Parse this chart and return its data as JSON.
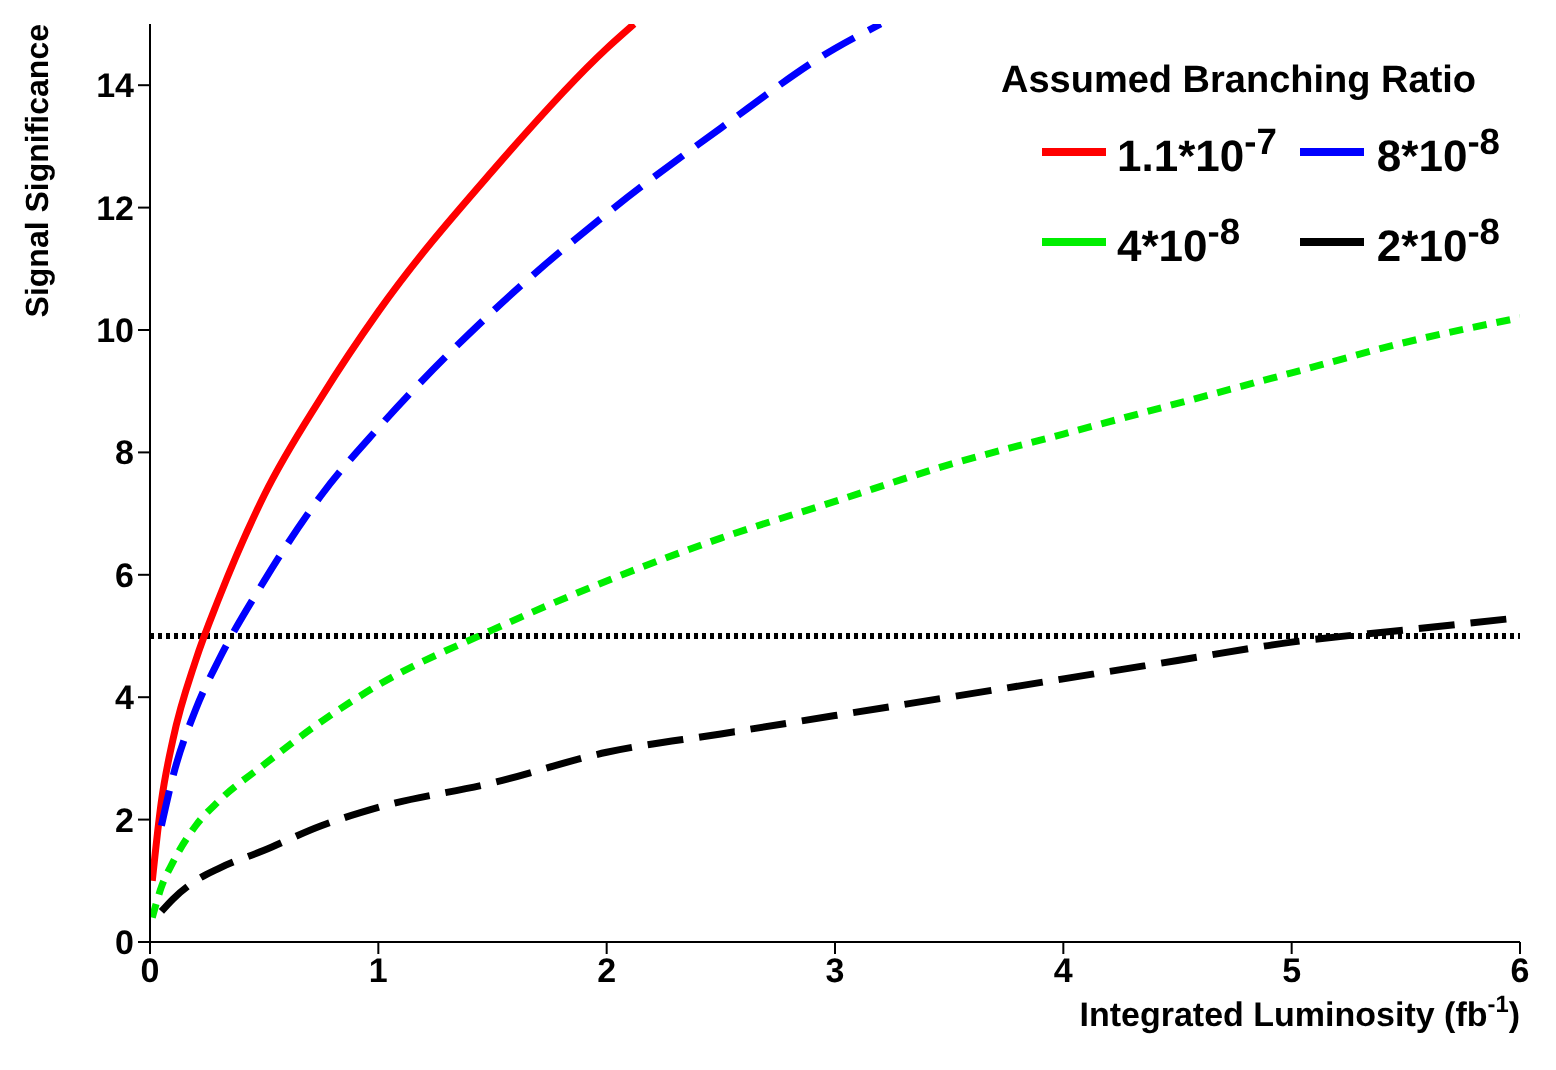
{
  "chart_data": {
    "type": "line",
    "xlabel": "Integrated Luminosity (fb$^{-1}$)",
    "ylabel": "Signal Significance",
    "legend_title": "Assumed Branching Ratio",
    "xlim": [
      0,
      6
    ],
    "ylim": [
      0,
      15
    ],
    "xticks": [
      0,
      1,
      2,
      3,
      4,
      5,
      6
    ],
    "yticks": [
      0,
      2,
      4,
      6,
      8,
      10,
      12,
      14
    ],
    "legend": "top right",
    "marker": "none",
    "series": [
      {
        "name": "1.1*10$^{-7}$",
        "color": "#ff0000",
        "line_style": "solid",
        "x": [
          0.01,
          0.05,
          0.1,
          0.2,
          0.3,
          0.5,
          0.75,
          1,
          1.5,
          2,
          2.12
        ],
        "values": [
          1.0,
          2.3,
          3.3,
          4.6,
          5.6,
          7.3,
          8.9,
          10.3,
          12.6,
          14.6,
          15
        ]
      },
      {
        "name": "8*10$^{-8}$",
        "color": "#0000ff",
        "line_style": "dashed",
        "x": [
          0.05,
          0.1,
          0.2,
          0.3,
          0.5,
          0.75,
          1,
          1.5,
          2,
          2.5,
          3,
          3.2
        ],
        "values": [
          1.9,
          2.7,
          3.8,
          4.6,
          5.9,
          7.3,
          8.4,
          10.3,
          11.9,
          13.3,
          14.6,
          15
        ]
      },
      {
        "name": "4*10$^{-8}$",
        "color": "#00ee00",
        "line_style": "dotted",
        "x": [
          0.01,
          0.05,
          0.1,
          0.2,
          0.3,
          0.5,
          0.75,
          1,
          1.5,
          2,
          2.5,
          3,
          3.5,
          4,
          4.5,
          5,
          5.5,
          6
        ],
        "values": [
          0.4,
          0.9,
          1.3,
          1.9,
          2.3,
          2.9,
          3.6,
          4.2,
          5.1,
          5.9,
          6.6,
          7.2,
          7.8,
          8.3,
          8.8,
          9.3,
          9.8,
          10.2
        ]
      },
      {
        "name": "2*10$^{-8}$",
        "color": "#000000",
        "line_style": "dashed",
        "x": [
          0.05,
          0.1,
          0.2,
          0.3,
          0.5,
          0.75,
          1,
          1.5,
          2,
          2.5,
          3,
          3.5,
          4,
          4.5,
          5,
          5.5,
          6
        ],
        "values": [
          0.5,
          0.7,
          1.0,
          1.2,
          1.5,
          1.9,
          2.2,
          2.6,
          3.1,
          3.4,
          3.7,
          4.0,
          4.3,
          4.6,
          4.9,
          5.1,
          5.3
        ]
      }
    ],
    "ref_lines": [
      {
        "axis": "y",
        "value": 5,
        "color": "#000000",
        "line_style": "dotted"
      }
    ]
  }
}
